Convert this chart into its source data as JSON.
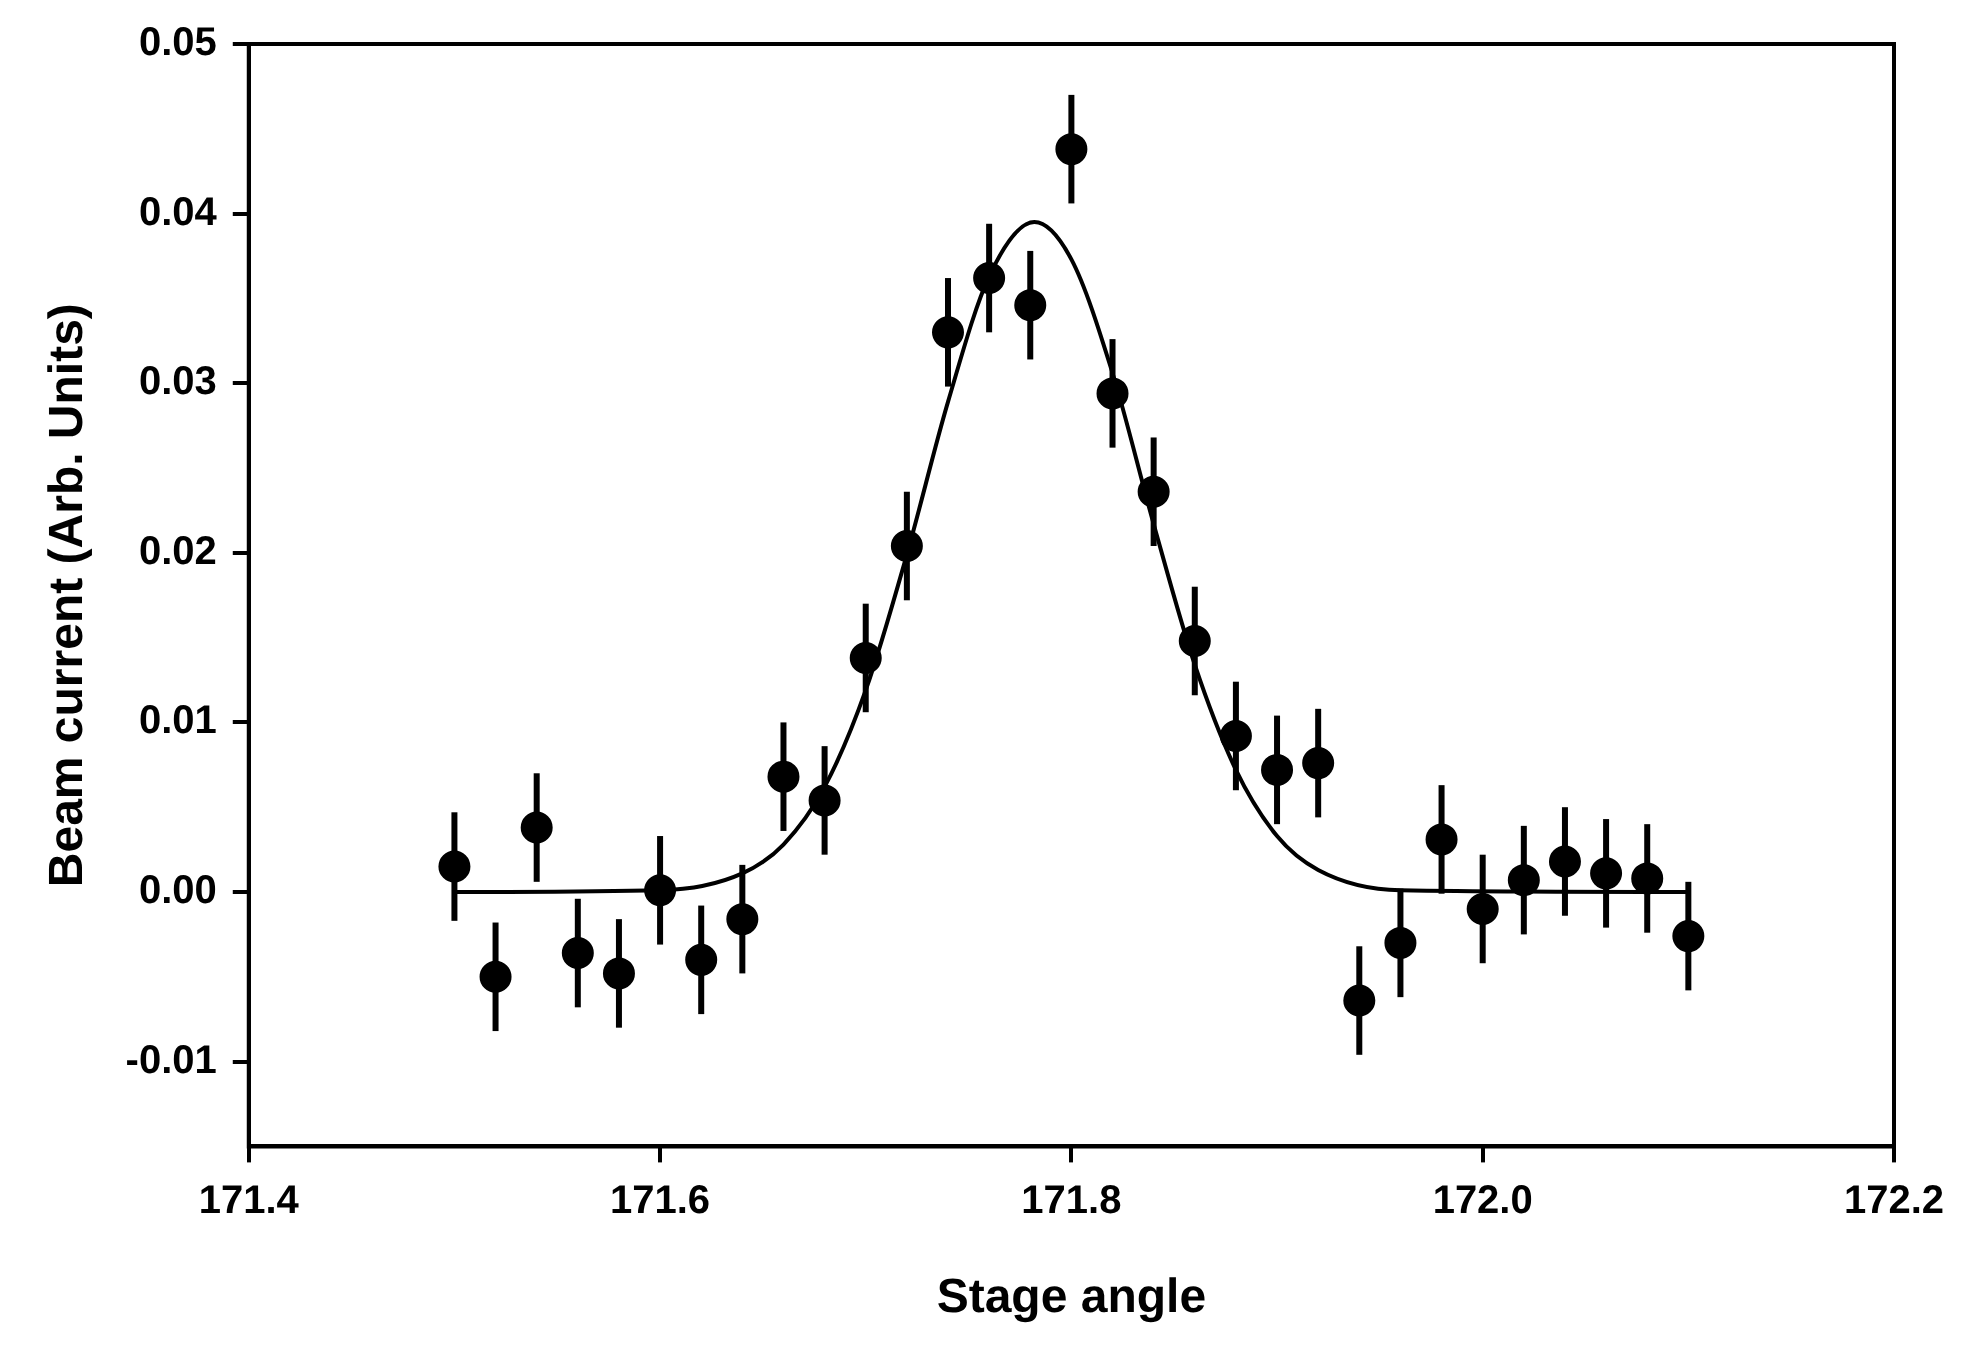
{
  "chart_data": {
    "type": "scatter",
    "xlabel": "Stage angle",
    "ylabel": "Beam current (Arb. Units)",
    "xlim": [
      171.4,
      172.2
    ],
    "xticks": [
      171.4,
      171.6,
      171.8,
      {
        "value": 172.0,
        "label": "172.0"
      },
      172.2
    ],
    "ylim": [
      -0.015,
      0.05
    ],
    "yticks": [
      -0.01,
      {
        "value": 0,
        "label": "0.00"
      },
      0.01,
      0.02,
      0.03,
      0.04,
      0.05
    ],
    "grid": false,
    "legend": false,
    "marker": "circle",
    "series": [
      {
        "color": "#000000",
        "x": [
          171.5,
          171.52,
          171.54,
          171.56,
          171.58,
          171.6,
          171.62,
          171.64,
          171.66,
          171.68,
          171.7,
          171.72,
          171.74,
          171.76,
          171.78,
          171.8,
          171.82,
          171.84,
          171.86,
          171.88,
          171.9,
          171.92,
          171.94,
          171.96,
          171.98,
          172.0,
          172.02,
          172.04,
          172.06,
          172.08,
          172.1
        ],
        "values": [
          0.0015,
          -0.005,
          0.0038,
          -0.0036,
          -0.0048,
          0.0001,
          -0.004,
          -0.0016,
          0.0068,
          0.0054,
          0.0138,
          0.0204,
          0.033,
          0.0362,
          0.0346,
          0.0438,
          0.0294,
          0.0236,
          0.0148,
          0.0092,
          0.0072,
          0.0076,
          -0.0064,
          -0.003,
          0.0031,
          -0.001,
          0.0007,
          0.0018,
          0.0011,
          0.0008,
          -0.0026
        ],
        "errors": [
          0.0032,
          0.0032,
          0.0032,
          0.0032,
          0.0032,
          0.0032,
          0.0032,
          0.0032,
          0.0032,
          0.0032,
          0.0032,
          0.0032,
          0.0032,
          0.0032,
          0.0032,
          0.0032,
          0.0032,
          0.0032,
          0.0032,
          0.0032,
          0.0032,
          0.0032,
          0.0032,
          0.0032,
          0.0032,
          0.0032,
          0.0032,
          0.0032,
          0.0032,
          0.0032,
          0.0032
        ]
      },
      {
        "type": "line",
        "color": "#000000",
        "line_style": "solid",
        "marker": "none",
        "x": [
          171.5,
          171.6,
          171.64,
          171.66,
          171.68,
          171.7,
          171.72,
          171.74,
          171.76,
          171.782,
          171.8,
          171.82,
          171.84,
          171.86,
          171.88,
          171.9,
          171.92,
          171.96,
          172.1
        ],
        "values": [
          0,
          0.0001,
          0.0011,
          0.0028,
          0.0062,
          0.0119,
          0.0199,
          0.0289,
          0.0363,
          0.0395,
          0.0373,
          0.0306,
          0.0217,
          0.0134,
          0.0072,
          0.0033,
          0.0013,
          0.0001,
          0
        ]
      }
    ]
  }
}
